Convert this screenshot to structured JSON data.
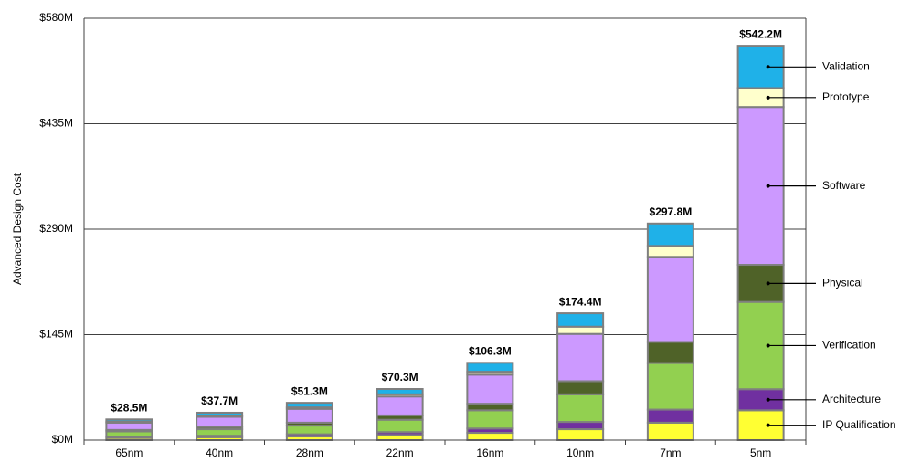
{
  "chart_data": {
    "type": "stacked-bar",
    "y_label": "Advanced  Design Cost",
    "categories": [
      "65nm",
      "40nm",
      "28nm",
      "22nm",
      "16nm",
      "10nm",
      "7nm",
      "5nm"
    ],
    "series": [
      {
        "name": "IP Qualification",
        "color": "#ffff33",
        "values": [
          3,
          4,
          5,
          7,
          10,
          15,
          24,
          41
        ]
      },
      {
        "name": "Architecture",
        "color": "#7030a0",
        "values": [
          2,
          2,
          3,
          4,
          6,
          10,
          18,
          29
        ]
      },
      {
        "name": "Verification",
        "color": "#92d050",
        "values": [
          7,
          9,
          12,
          17,
          25,
          38,
          64,
          120
        ]
      },
      {
        "name": "Physical",
        "color": "#4f6228",
        "values": [
          2,
          3,
          4,
          6,
          9,
          18,
          29,
          51
        ]
      },
      {
        "name": "Software",
        "color": "#cc99ff",
        "values": [
          10,
          14,
          19,
          26,
          40,
          65,
          117,
          217
        ]
      },
      {
        "name": "Prototype",
        "color": "#ffffcc",
        "values": [
          1.5,
          1.5,
          2,
          3,
          4,
          10,
          15,
          26
        ]
      },
      {
        "name": "Validation",
        "color": "#1fb1e8",
        "values": [
          3,
          4.2,
          6.3,
          7.3,
          12.3,
          18.4,
          30.8,
          58.2
        ]
      }
    ],
    "totals": {
      "values": [
        28.5,
        37.7,
        51.3,
        70.3,
        106.3,
        174.4,
        297.8,
        542.2
      ],
      "value_labels": [
        "$28.5M",
        "$37.7M",
        "$51.3M",
        "$70.3M",
        "$106.3M",
        "$174.4M",
        "$297.8M",
        "$542.2M"
      ]
    },
    "ylim": [
      0,
      580
    ],
    "yticks": [
      {
        "value": 0,
        "label": "$0M"
      },
      {
        "value": 145,
        "label": "$145M"
      },
      {
        "value": 290,
        "label": "$290M"
      },
      {
        "value": 435,
        "label": "$435M"
      },
      {
        "value": 580,
        "label": "$580M"
      }
    ],
    "grid": true
  }
}
